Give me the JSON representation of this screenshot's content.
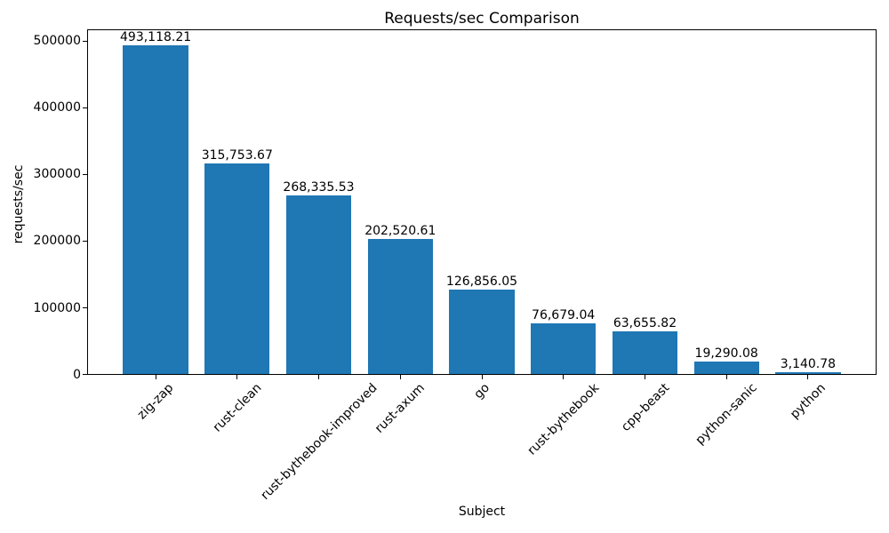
{
  "chart_data": {
    "type": "bar",
    "title": "Requests/sec Comparison",
    "xlabel": "Subject",
    "ylabel": "requests/sec",
    "categories": [
      "zig-zap",
      "rust-clean",
      "rust-bythebook-improved",
      "rust-axum",
      "go",
      "rust-bythebook",
      "cpp-beast",
      "python-sanic",
      "python"
    ],
    "values": [
      493118.21,
      315753.67,
      268335.53,
      202520.61,
      126856.05,
      76679.04,
      63655.82,
      19290.08,
      3140.78
    ],
    "value_labels": [
      "493,118.21",
      "315,753.67",
      "268,335.53",
      "202,520.61",
      "126,856.05",
      "76,679.04",
      "63,655.82",
      "19,290.08",
      "3,140.78"
    ],
    "yticks": [
      0,
      100000,
      200000,
      300000,
      400000,
      500000
    ],
    "ytick_labels": [
      "0",
      "100000",
      "200000",
      "300000",
      "400000",
      "500000"
    ],
    "ylim": [
      0,
      517774
    ],
    "bar_width_fraction": 0.8,
    "bar_color": "#1f77b4",
    "axis_color": "#000000",
    "background_color": "#ffffff",
    "grid": false,
    "legend": "none",
    "xtick_rotation_deg": 45
  }
}
